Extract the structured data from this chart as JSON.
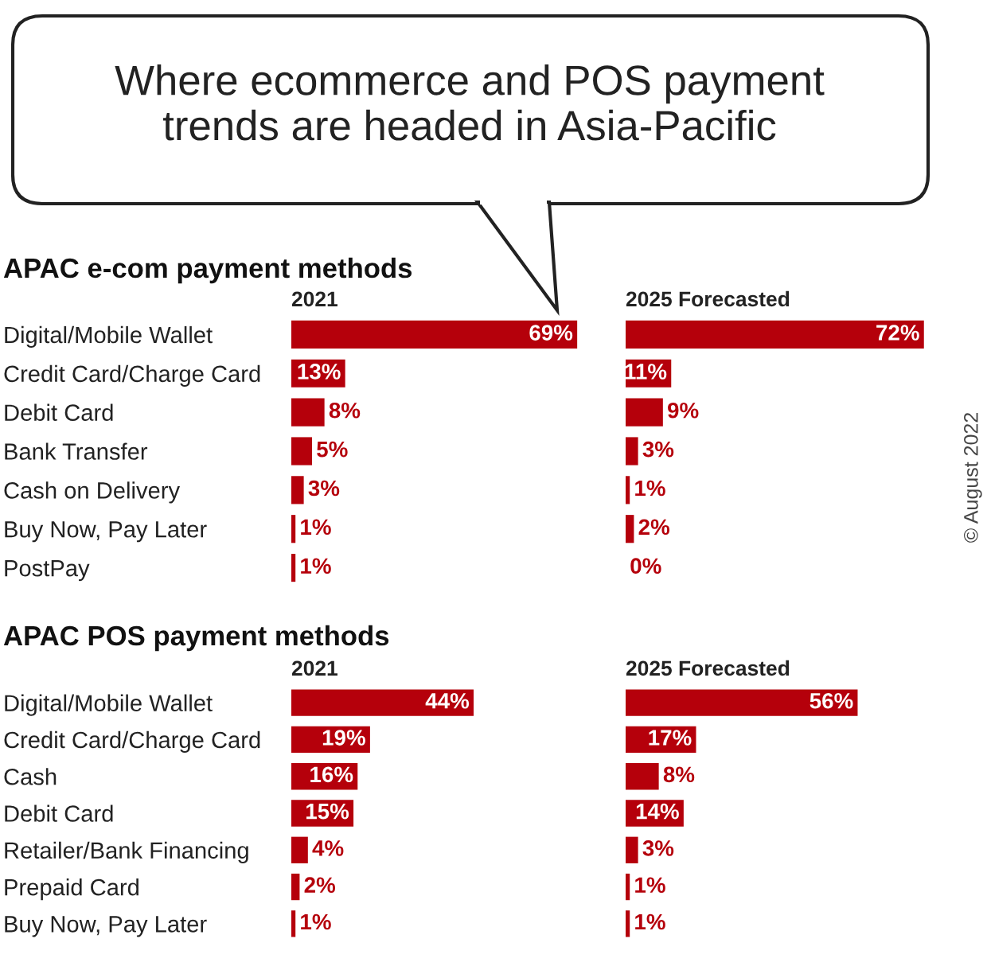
{
  "chart_data": [
    {
      "type": "bar",
      "orientation": "horizontal",
      "title": "APAC e-com payment methods",
      "subtitle": "2021",
      "annotations": [
        "Where ecommerce and POS payment\ntrends are headed in Asia-Pacific",
        "© August 2022"
      ],
      "categories": [
        "Digital/Mobile Wallet",
        "Credit Card/Charge Card",
        "Debit Card",
        "Bank Transfer",
        "Cash on Delivery",
        "Buy Now, Pay Later",
        "PostPay"
      ],
      "values": [
        69,
        13,
        8,
        5,
        3,
        1,
        1
      ],
      "value_labels": [
        "69%",
        "13%",
        "8%",
        "5%",
        "3%",
        "1%",
        "1%"
      ],
      "color": "#b5000b"
    },
    {
      "type": "bar",
      "orientation": "horizontal",
      "subtitle": "2025 Forecasted",
      "categories": [
        null,
        null,
        null,
        null,
        null,
        null,
        null
      ],
      "values": [
        72,
        11,
        9,
        3,
        1,
        2,
        0
      ],
      "value_labels": [
        "72%",
        "11%",
        "9%",
        "3%",
        "1%",
        "2%",
        "0%"
      ],
      "color": "#b5000b"
    },
    {
      "type": "bar",
      "orientation": "horizontal",
      "title": "APAC POS payment methods",
      "subtitle": "2021",
      "categories": [
        "Digital/Mobile Wallet",
        "Credit Card/Charge Card",
        "Cash",
        "Debit Card",
        "Retailer/Bank Financing",
        "Prepaid Card",
        "Buy Now, Pay Later"
      ],
      "values": [
        44,
        19,
        16,
        15,
        4,
        2,
        1
      ],
      "value_labels": [
        "44%",
        "19%",
        "16%",
        "15%",
        "4%",
        "2%",
        "1%"
      ],
      "color": "#b5000b"
    },
    {
      "type": "bar",
      "orientation": "horizontal",
      "subtitle": "2025 Forecasted",
      "categories": [
        null,
        null,
        null,
        null,
        null,
        null,
        null
      ],
      "values": [
        56,
        17,
        8,
        14,
        3,
        1,
        1
      ],
      "value_labels": [
        "56%",
        "17%",
        "8%",
        "14%",
        "3%",
        "1%",
        "1%"
      ],
      "color": "#b5000b"
    }
  ]
}
